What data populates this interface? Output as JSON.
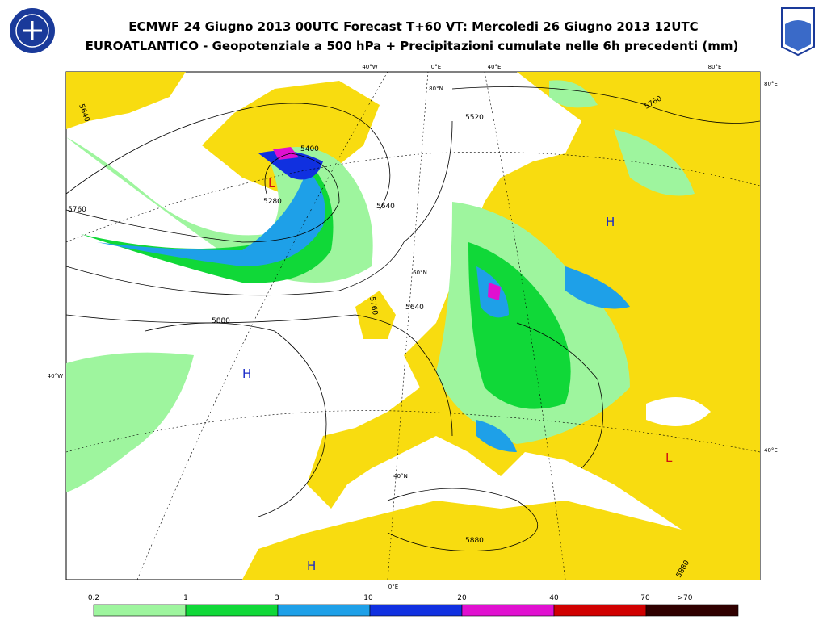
{
  "header": {
    "title_lines": [
      "ECMWF 24 Giugno 2013 00UTC Forecast T+60 VT: Mercoledi 26 Giugno 2013 12UTC",
      "EUROATLANTICO - Geopotenziale a 500 hPa + Precipitazioni cumulate nelle 6h precedenti (mm)"
    ]
  },
  "map": {
    "coordinate_labels": [
      "40°W",
      "0°E",
      "40°E",
      "80°E",
      "80°E",
      "40°W",
      "40°E",
      "40°N",
      "0°E",
      "80°N",
      "60°N"
    ],
    "contour_labels": [
      "5640",
      "5520",
      "5400",
      "5280",
      "5760",
      "5640",
      "5640",
      "5880",
      "5760",
      "5880",
      "5760",
      "5880"
    ],
    "pressure_centers": [
      "L",
      "H",
      "H",
      "H",
      "L"
    ]
  },
  "legend": {
    "items": [
      {
        "label": "0.2",
        "color": "#9ef59e"
      },
      {
        "label": "1",
        "color": "#10d838"
      },
      {
        "label": "3",
        "color": "#1ea0e8"
      },
      {
        "label": "10",
        "color": "#1030e0"
      },
      {
        "label": "20",
        "color": "#e010d0"
      },
      {
        "label": "40",
        "color": "#d00000"
      },
      {
        "label": "70",
        "color": "#300000"
      },
      {
        "label": ">70",
        "color": null
      }
    ]
  }
}
